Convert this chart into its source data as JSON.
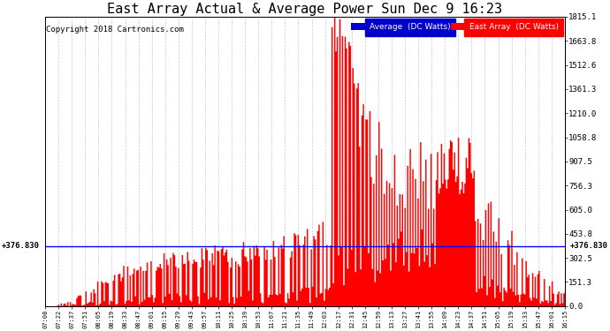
{
  "title": "East Array Actual & Average Power Sun Dec 9 16:23",
  "copyright": "Copyright 2018 Cartronics.com",
  "avg_value": 376.83,
  "y_max": 1815.1,
  "y_ticks_right": [
    0.0,
    151.3,
    302.5,
    453.8,
    605.0,
    756.3,
    907.5,
    1058.8,
    1210.0,
    1361.3,
    1512.6,
    1663.8,
    1815.1
  ],
  "y_tick_labels_right": [
    "0.0",
    "151.3",
    "302.5",
    "453.8",
    "605.0",
    "756.3",
    "907.5",
    "1058.8",
    "1210.0",
    "1361.3",
    "1512.6",
    "1663.8",
    "1815.1"
  ],
  "x_labels": [
    "07:08",
    "07:22",
    "07:37",
    "07:51",
    "08:05",
    "08:19",
    "08:33",
    "08:47",
    "09:01",
    "09:15",
    "09:29",
    "09:43",
    "09:57",
    "10:11",
    "10:25",
    "10:39",
    "10:53",
    "11:07",
    "11:21",
    "11:35",
    "11:49",
    "12:03",
    "12:17",
    "12:31",
    "12:45",
    "12:59",
    "13:13",
    "13:27",
    "13:41",
    "13:55",
    "14:09",
    "14:23",
    "14:37",
    "14:51",
    "15:05",
    "15:19",
    "15:33",
    "15:47",
    "16:01",
    "16:15"
  ],
  "bg_color": "#ffffff",
  "grid_color": "#c8c8c8",
  "area_color": "#ff0000",
  "avg_line_color": "#0000ff",
  "title_fontsize": 11,
  "copyright_fontsize": 6.5
}
